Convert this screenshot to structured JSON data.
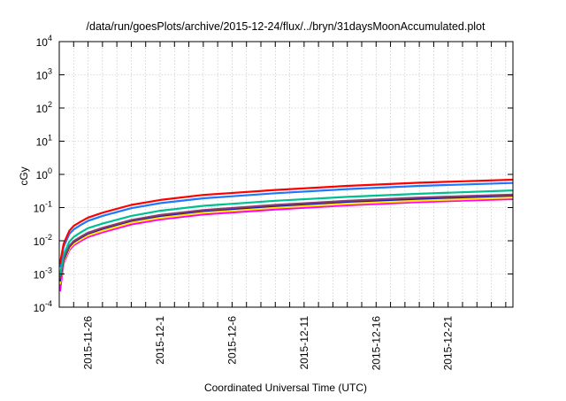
{
  "chart_data": {
    "type": "line",
    "title": "/data/run/goesPlots/archive/2015-12-24/flux/../bryn/31daysMoonAccumulated.plot",
    "xlabel": "Coordinated Universal Time (UTC)",
    "ylabel": "cGy",
    "x_units": "days since 2015-11-24 00:00 UTC",
    "xlim": [
      0,
      31.5
    ],
    "ylim": [
      0.0001,
      10000
    ],
    "yscale": "log",
    "grid": true,
    "legend": "none",
    "x_ticks": [
      {
        "value": 2,
        "label": "2015-11-26"
      },
      {
        "value": 7,
        "label": "2015-12-1"
      },
      {
        "value": 12,
        "label": "2015-12-6"
      },
      {
        "value": 17,
        "label": "2015-12-11"
      },
      {
        "value": 22,
        "label": "2015-12-16"
      },
      {
        "value": 27,
        "label": "2015-12-21"
      }
    ],
    "y_ticks": [
      {
        "value": -4,
        "base": "10",
        "exp": "-4"
      },
      {
        "value": -3,
        "base": "10",
        "exp": "-3"
      },
      {
        "value": -2,
        "base": "10",
        "exp": "-2"
      },
      {
        "value": -1,
        "base": "10",
        "exp": "-1"
      },
      {
        "value": 0,
        "base": "10",
        "exp": "0"
      },
      {
        "value": 1,
        "base": "10",
        "exp": "1"
      },
      {
        "value": 2,
        "base": "10",
        "exp": "2"
      },
      {
        "value": 3,
        "base": "10",
        "exp": "3"
      },
      {
        "value": 4,
        "base": "10",
        "exp": "4"
      }
    ],
    "x": [
      0.05,
      0.3,
      0.7,
      1,
      1.5,
      2,
      3,
      5,
      7,
      10,
      15,
      20,
      25,
      31.5
    ],
    "series": [
      {
        "name": "magenta",
        "color": "#ff00ff",
        "values": [
          0.0003,
          0.0021,
          0.0052,
          0.0073,
          0.0099,
          0.013,
          0.018,
          0.031,
          0.044,
          0.062,
          0.088,
          0.117,
          0.146,
          0.18
        ]
      },
      {
        "name": "yellow",
        "color": "#ffe800",
        "values": [
          0.0005,
          0.0023,
          0.0058,
          0.0081,
          0.011,
          0.0145,
          0.02,
          0.035,
          0.049,
          0.07,
          0.099,
          0.13,
          0.162,
          0.2
        ]
      },
      {
        "name": "navy",
        "color": "#1a1aa8",
        "values": [
          0.0006,
          0.0026,
          0.0066,
          0.0092,
          0.0125,
          0.0165,
          0.023,
          0.04,
          0.056,
          0.079,
          0.112,
          0.15,
          0.185,
          0.23
        ]
      },
      {
        "name": "brown",
        "color": "#8b3c6e",
        "values": [
          0.0007,
          0.0028,
          0.007,
          0.0098,
          0.0133,
          0.0175,
          0.0245,
          0.042,
          0.06,
          0.084,
          0.12,
          0.16,
          0.2,
          0.245
        ]
      },
      {
        "name": "teal",
        "color": "#00c090",
        "values": [
          0.0009,
          0.0038,
          0.0094,
          0.013,
          0.018,
          0.024,
          0.033,
          0.056,
          0.08,
          0.113,
          0.16,
          0.21,
          0.26,
          0.33
        ]
      },
      {
        "name": "blue",
        "color": "#1e78ff",
        "values": [
          0.0016,
          0.0065,
          0.016,
          0.022,
          0.03,
          0.04,
          0.056,
          0.096,
          0.136,
          0.19,
          0.27,
          0.36,
          0.45,
          0.55
        ]
      },
      {
        "name": "red",
        "color": "#ff0000",
        "values": [
          0.002,
          0.008,
          0.02,
          0.028,
          0.038,
          0.05,
          0.07,
          0.12,
          0.17,
          0.24,
          0.34,
          0.45,
          0.56,
          0.69
        ]
      }
    ]
  }
}
